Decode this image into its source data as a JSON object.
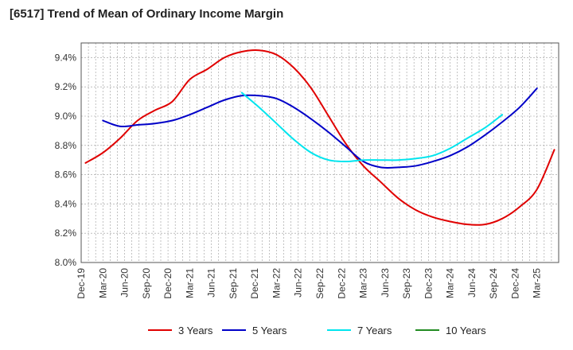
{
  "chart_data": {
    "type": "line",
    "title": "[6517]  Trend of Mean of Ordinary Income Margin",
    "xlabel": "",
    "ylabel": "",
    "x_tick_labels": [
      "Dec-19",
      "Mar-20",
      "Jun-20",
      "Sep-20",
      "Dec-20",
      "Mar-21",
      "Jun-21",
      "Sep-21",
      "Dec-21",
      "Mar-22",
      "Jun-22",
      "Sep-22",
      "Dec-22",
      "Mar-23",
      "Jun-23",
      "Sep-23",
      "Dec-23",
      "Mar-24",
      "Jun-24",
      "Sep-24",
      "Dec-24",
      "Mar-25"
    ],
    "y_tick_labels": [
      "8.0%",
      "8.2%",
      "8.4%",
      "8.6%",
      "8.8%",
      "9.0%",
      "9.2%",
      "9.4%"
    ],
    "ylim": [
      8.0,
      9.5
    ],
    "y_ticks": [
      8.0,
      8.2,
      8.4,
      8.6,
      8.8,
      9.0,
      9.2,
      9.4
    ],
    "grid": true,
    "legend_position": "bottom",
    "series": [
      {
        "name": "3 Years",
        "color": "#e00000",
        "start_index": 0,
        "values": [
          8.68,
          8.75,
          8.85,
          8.97,
          9.04,
          9.1,
          9.25,
          9.32,
          9.4,
          9.44,
          9.45,
          9.42,
          9.33,
          9.19,
          9.0,
          8.81,
          8.66,
          8.55,
          8.44,
          8.36,
          8.31,
          8.28,
          8.26,
          8.26,
          8.3,
          8.38,
          8.5,
          8.77
        ]
      },
      {
        "name": "5 Years",
        "color": "#0000c8",
        "start_index": 1,
        "values": [
          8.97,
          8.93,
          8.94,
          8.95,
          8.97,
          9.01,
          9.06,
          9.11,
          9.14,
          9.14,
          9.12,
          9.06,
          8.98,
          8.89,
          8.79,
          8.69,
          8.65,
          8.65,
          8.66,
          8.69,
          8.73,
          8.79,
          8.87,
          8.96,
          9.06,
          9.19
        ]
      },
      {
        "name": "7 Years",
        "color": "#00e5ee",
        "start_index": 9,
        "values": [
          9.16,
          9.06,
          8.95,
          8.84,
          8.75,
          8.7,
          8.69,
          8.7,
          8.7,
          8.7,
          8.71,
          8.73,
          8.78,
          8.85,
          8.92,
          9.01
        ]
      },
      {
        "name": "10 Years",
        "color": "#228b22",
        "start_index": 0,
        "values": []
      }
    ]
  }
}
